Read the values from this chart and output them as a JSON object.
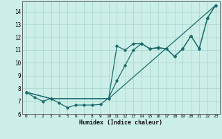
{
  "xlabel": "Humidex (Indice chaleur)",
  "bg_color": "#cceee8",
  "line_color": "#1a6b6b",
  "grid_color": "#aad8d0",
  "xlim": [
    -0.5,
    23.5
  ],
  "ylim": [
    6.0,
    14.8
  ],
  "yticks": [
    6,
    7,
    8,
    9,
    10,
    11,
    12,
    13,
    14
  ],
  "xticks": [
    0,
    1,
    2,
    3,
    4,
    5,
    6,
    7,
    8,
    9,
    10,
    11,
    12,
    13,
    14,
    15,
    16,
    17,
    18,
    19,
    20,
    21,
    22,
    23
  ],
  "line1_x": [
    0,
    1,
    2,
    3,
    4,
    5,
    6,
    7,
    8,
    9,
    10,
    11,
    12,
    13,
    14,
    15,
    16,
    17,
    18,
    19,
    20,
    21,
    22,
    23
  ],
  "line1_y": [
    7.7,
    7.3,
    7.0,
    7.2,
    6.85,
    6.5,
    6.7,
    6.7,
    6.7,
    6.75,
    7.25,
    8.6,
    9.8,
    11.0,
    11.5,
    11.1,
    11.15,
    11.1,
    10.5,
    11.1,
    12.1,
    11.1,
    13.5,
    14.5
  ],
  "line2_x": [
    0,
    3,
    10,
    23
  ],
  "line2_y": [
    7.7,
    7.2,
    7.2,
    14.5
  ],
  "line3_x": [
    0,
    3,
    10,
    11,
    12,
    13,
    14,
    15,
    16,
    17,
    18,
    19,
    20,
    21,
    22,
    23
  ],
  "line3_y": [
    7.7,
    7.2,
    7.2,
    11.3,
    11.0,
    11.5,
    11.5,
    11.1,
    11.2,
    11.1,
    10.5,
    11.1,
    12.1,
    11.1,
    13.5,
    14.5
  ]
}
